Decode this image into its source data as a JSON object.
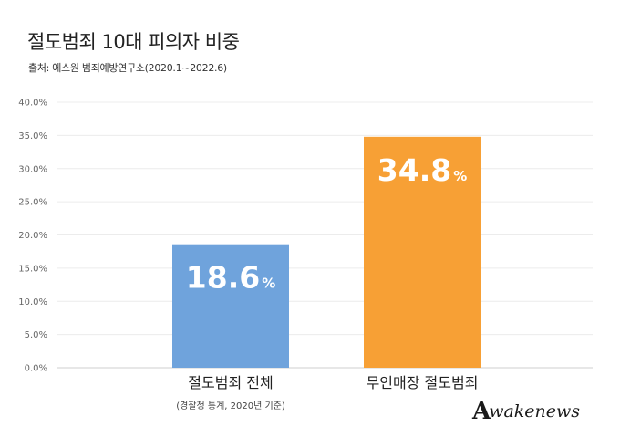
{
  "chart_data": {
    "type": "bar",
    "title": "절도범죄 10대 피의자 비중",
    "subtitle": "출처: 에스원 범죄예방연구소(2020.1~2022.6)",
    "categories": [
      "절도범죄 전체",
      "무인매장 절도범죄"
    ],
    "category_notes": [
      "(경찰청 통계, 2020년 기준)",
      ""
    ],
    "values": [
      18.6,
      34.8
    ],
    "value_labels": [
      {
        "number": "18.6",
        "unit": "%"
      },
      {
        "number": "34.8",
        "unit": "%"
      }
    ],
    "colors": [
      "#6fa3dc",
      "#f7a035"
    ],
    "ylim": [
      0,
      40
    ],
    "yticks": [
      0,
      5,
      10,
      15,
      20,
      25,
      30,
      35,
      40
    ],
    "ytick_labels": [
      "0.0%",
      "5.0%",
      "10.0%",
      "15.0%",
      "20.0%",
      "25.0%",
      "30.0%",
      "35.0%",
      "40.0%"
    ],
    "grid": true,
    "xlabel": "",
    "ylabel": ""
  },
  "watermark": {
    "mark": "A",
    "text": "wakenews"
  }
}
